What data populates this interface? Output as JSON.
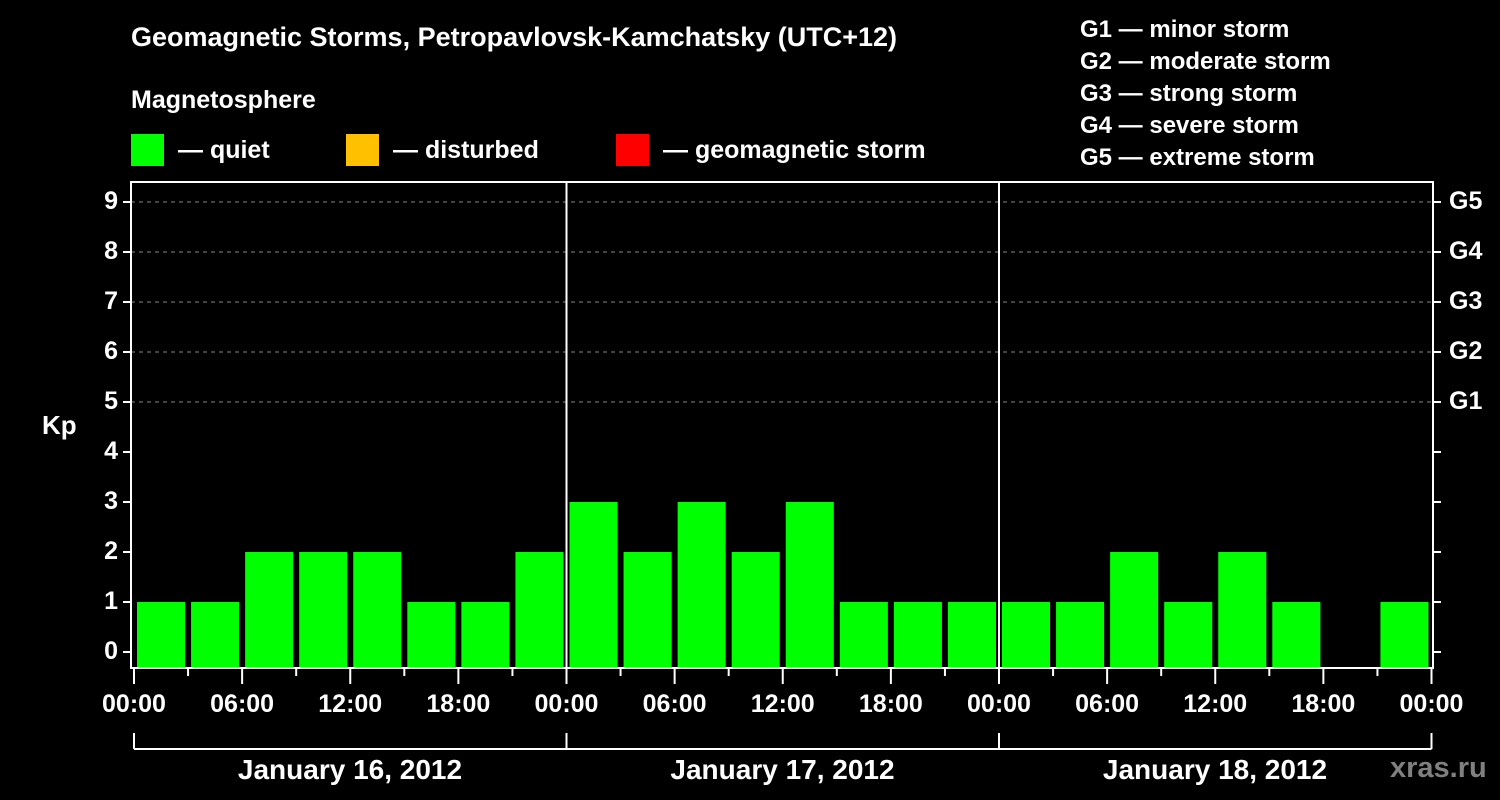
{
  "header": {
    "title": "Geomagnetic Storms, Petropavlovsk-Kamchatsky (UTC+12)",
    "subtitle": "Magnetosphere"
  },
  "legend": [
    {
      "label": "— quiet",
      "color": "#00ff00"
    },
    {
      "label": "— disturbed",
      "color": "#ffc000"
    },
    {
      "label": "— geomagnetic storm",
      "color": "#ff0000"
    }
  ],
  "storm_scale": [
    "G1 — minor storm",
    "G2 — moderate storm",
    "G3 — strong storm",
    "G4 — severe storm",
    "G5 — extreme storm"
  ],
  "watermark": "xras.ru",
  "chart_data": {
    "type": "bar",
    "title": "Geomagnetic Storms, Petropavlovsk-Kamchatsky (UTC+12)",
    "subtitle": "Magnetosphere",
    "xlabel": "",
    "ylabel": "Kp",
    "ylim": [
      0,
      9
    ],
    "yticks": [
      "0",
      "1",
      "2",
      "3",
      "4",
      "5",
      "6",
      "7",
      "8",
      "9"
    ],
    "right_axis_labels": [
      {
        "kp": 5,
        "label": "G1"
      },
      {
        "kp": 6,
        "label": "G2"
      },
      {
        "kp": 7,
        "label": "G3"
      },
      {
        "kp": 8,
        "label": "G4"
      },
      {
        "kp": 9,
        "label": "G5"
      }
    ],
    "grid": "dashed horizontal at Kp 5-9",
    "x_tick_labels": [
      "00:00",
      "06:00",
      "12:00",
      "18:00",
      "00:00",
      "06:00",
      "12:00",
      "18:00",
      "00:00",
      "06:00",
      "12:00",
      "18:00",
      "00:00"
    ],
    "days": [
      "January 16, 2012",
      "January 17, 2012",
      "January 18, 2012"
    ],
    "interval_hours": 3,
    "categories": [
      "Jan16 00-03",
      "Jan16 03-06",
      "Jan16 06-09",
      "Jan16 09-12",
      "Jan16 12-15",
      "Jan16 15-18",
      "Jan16 18-21",
      "Jan16 21-24",
      "Jan17 00-03",
      "Jan17 03-06",
      "Jan17 06-09",
      "Jan17 09-12",
      "Jan17 12-15",
      "Jan17 15-18",
      "Jan17 18-21",
      "Jan17 21-24",
      "Jan18 00-03",
      "Jan18 03-06",
      "Jan18 06-09",
      "Jan18 09-12",
      "Jan18 12-15",
      "Jan18 15-18",
      "Jan18 18-21",
      "Jan18 21-24"
    ],
    "values": [
      1,
      1,
      2,
      2,
      2,
      1,
      1,
      2,
      3,
      2,
      3,
      2,
      3,
      1,
      1,
      1,
      1,
      1,
      2,
      1,
      2,
      1,
      null,
      1
    ],
    "status": "quiet",
    "bar_color": "#00ff00"
  }
}
